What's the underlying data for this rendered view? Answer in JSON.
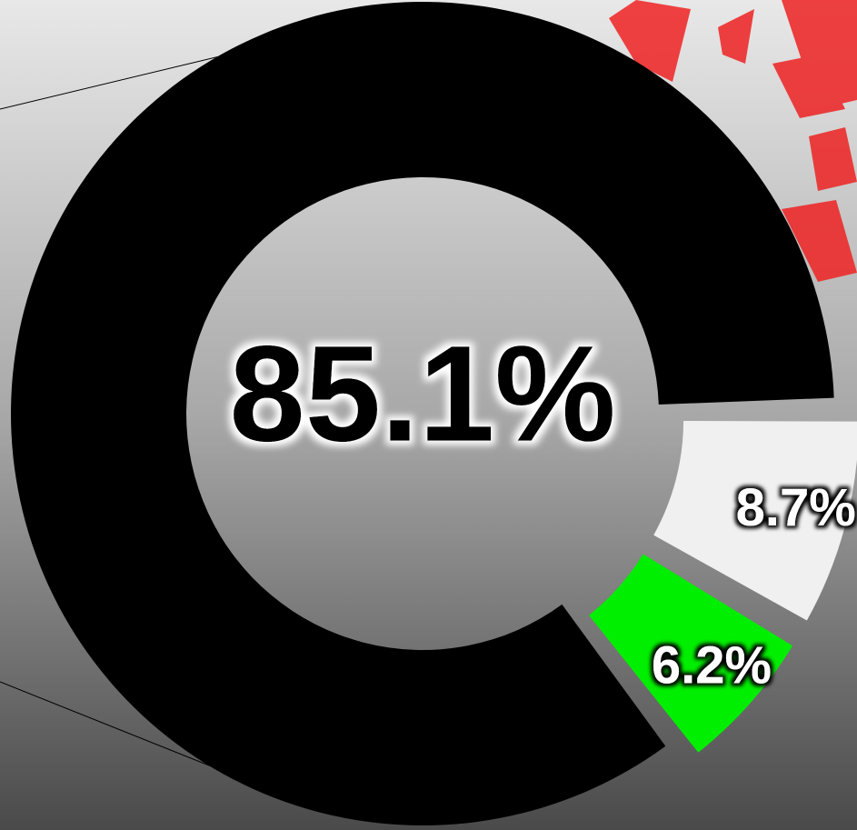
{
  "chart_data": {
    "type": "donut",
    "values": [
      8.7,
      6.2,
      85.1
    ],
    "value_labels": [
      "8.7%",
      "6.2%",
      "85.1%"
    ],
    "colors": [
      "#f0f0f0",
      "#00ee00",
      "#000000"
    ]
  }
}
